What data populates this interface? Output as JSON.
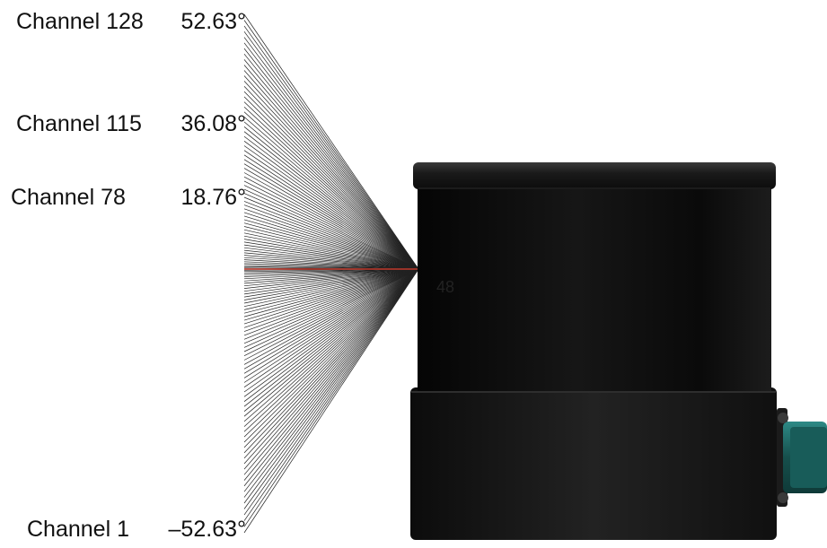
{
  "channels": [
    {
      "name": "Channel 128",
      "angle": "52.63°"
    },
    {
      "name": "Channel 115",
      "angle": "36.08°"
    },
    {
      "name": "Channel 78",
      "angle": "18.76°"
    },
    {
      "name": "Channel 1",
      "angle": "–52.63°"
    }
  ],
  "center_label": "48",
  "beam": {
    "count": 128,
    "highlight_index": 48,
    "highlight_color": "#c0392b",
    "line_color": "#222222"
  },
  "sensor": {
    "body_color": "#0b0b0b",
    "connector_color": "#1f6f6c"
  }
}
